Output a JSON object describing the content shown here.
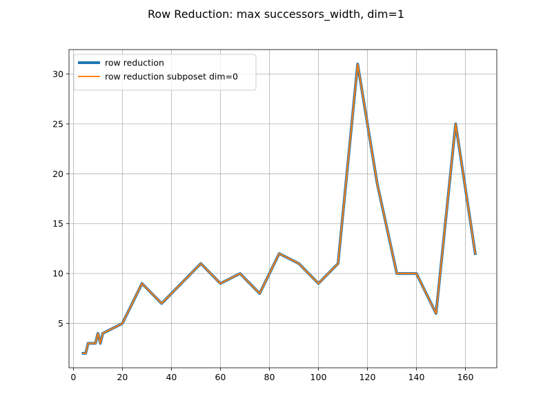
{
  "chart_data": {
    "type": "line",
    "title": "Row Reduction: max successors_width, dim=1",
    "xlabel": "",
    "ylabel": "",
    "xlim": [
      -1.8,
      172.8
    ],
    "ylim": [
      0.55,
      32.45
    ],
    "xticks": [
      0,
      20,
      40,
      60,
      80,
      100,
      120,
      140,
      160
    ],
    "yticks": [
      5,
      10,
      15,
      20,
      25,
      30
    ],
    "grid": true,
    "legend_position": "top-left",
    "x": [
      4,
      5,
      6,
      8,
      9,
      10,
      11,
      12,
      20,
      28,
      36,
      44,
      52,
      60,
      68,
      76,
      84,
      92,
      100,
      108,
      116,
      124,
      132,
      140,
      148,
      156,
      164
    ],
    "series": [
      {
        "name": "row reduction",
        "color": "#1f77b4",
        "values": [
          2,
          2,
          3,
          3,
          3,
          4,
          3,
          4,
          5,
          9,
          7,
          9,
          11,
          9,
          10,
          8,
          12,
          11,
          9,
          11,
          31,
          19,
          10,
          10,
          6,
          25,
          12
        ]
      },
      {
        "name": "row reduction subposet dim=0",
        "color": "#ff7f0e",
        "values": [
          2,
          2,
          3,
          3,
          3,
          4,
          3,
          4,
          5,
          9,
          7,
          9,
          11,
          9,
          10,
          8,
          12,
          11,
          9,
          11,
          31,
          19,
          10,
          10,
          6,
          25,
          12
        ]
      }
    ]
  }
}
